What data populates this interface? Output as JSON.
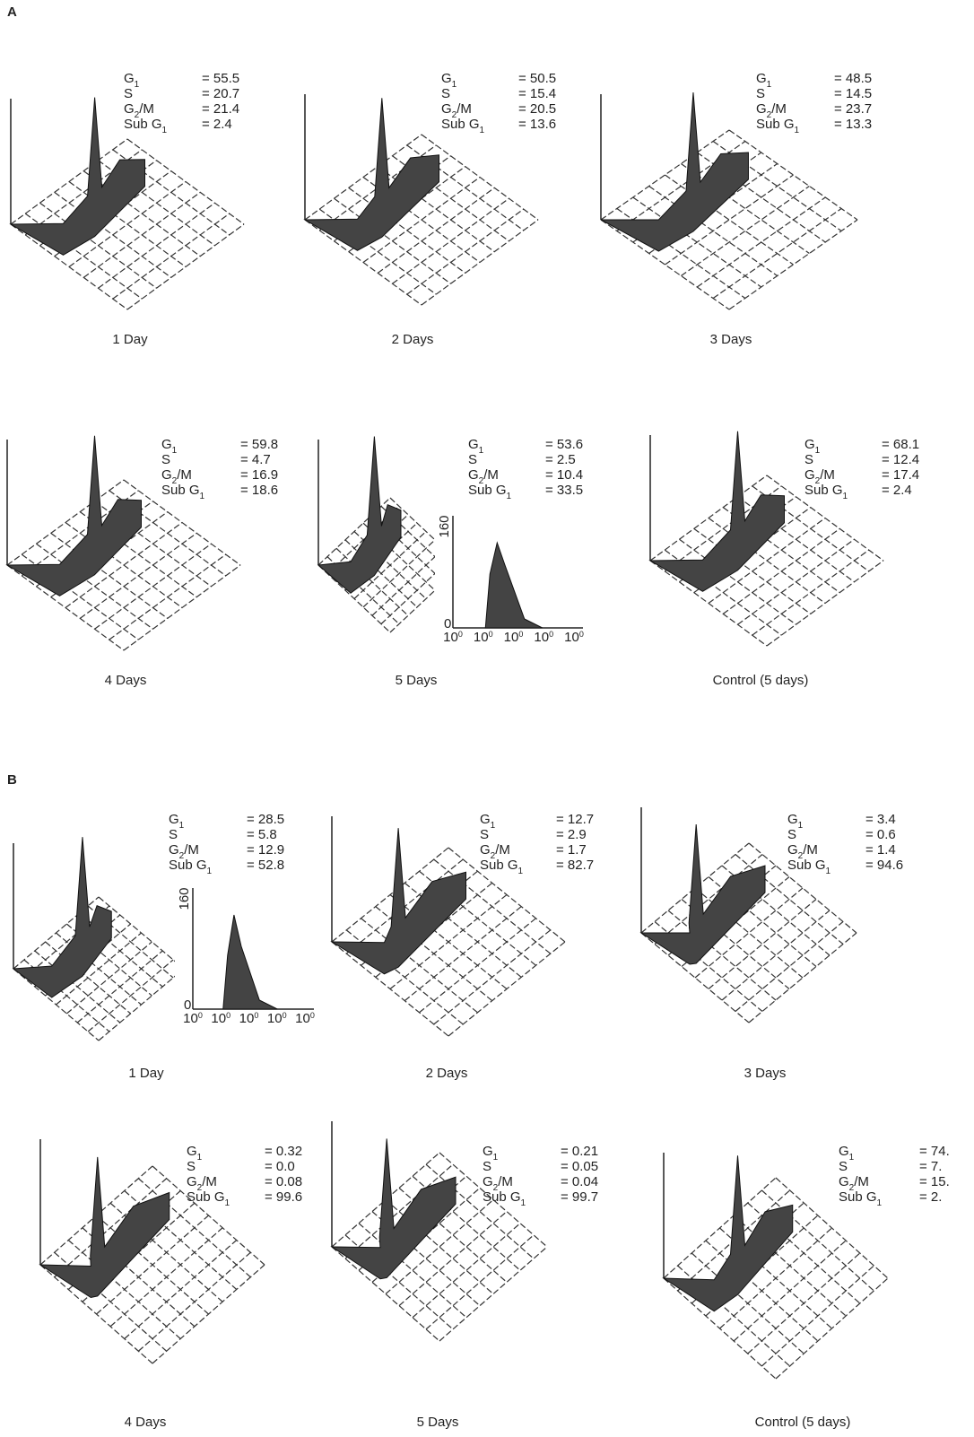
{
  "figure": {
    "sections": [
      {
        "label": "A",
        "panels": [
          {
            "caption": "1 Day",
            "stats": [
              {
                "label": [
                  "G",
                  "1"
                ],
                "value": "= 55.5"
              },
              {
                "label": [
                  "S"
                ],
                "value": "= 20.7"
              },
              {
                "label": [
                  "G",
                  "2",
                  "/M"
                ],
                "value": "= 21.4"
              },
              {
                "label": [
                  "Sub G",
                  "1"
                ],
                "value": "= 2.4"
              }
            ]
          },
          {
            "caption": "2 Days",
            "stats": [
              {
                "label": [
                  "G",
                  "1"
                ],
                "value": "= 50.5"
              },
              {
                "label": [
                  "S"
                ],
                "value": "= 15.4"
              },
              {
                "label": [
                  "G",
                  "2",
                  "/M"
                ],
                "value": "= 20.5"
              },
              {
                "label": [
                  "Sub G",
                  "1"
                ],
                "value": "= 13.6"
              }
            ]
          },
          {
            "caption": "3 Days",
            "stats": [
              {
                "label": [
                  "G",
                  "1"
                ],
                "value": "= 48.5"
              },
              {
                "label": [
                  "S"
                ],
                "value": "= 14.5"
              },
              {
                "label": [
                  "G",
                  "2",
                  "/M"
                ],
                "value": "= 23.7"
              },
              {
                "label": [
                  "Sub G",
                  "1"
                ],
                "value": "= 13.3"
              }
            ]
          },
          {
            "caption": "4 Days",
            "stats": [
              {
                "label": [
                  "G",
                  "1"
                ],
                "value": "= 59.8"
              },
              {
                "label": [
                  "S"
                ],
                "value": "= 4.7"
              },
              {
                "label": [
                  "G",
                  "2",
                  "/M"
                ],
                "value": "= 16.9"
              },
              {
                "label": [
                  "Sub G",
                  "1"
                ],
                "value": "= 18.6"
              }
            ]
          },
          {
            "caption": "5 Days",
            "stats": [
              {
                "label": [
                  "G",
                  "1"
                ],
                "value": "= 53.6"
              },
              {
                "label": [
                  "S"
                ],
                "value": "= 2.5"
              },
              {
                "label": [
                  "G",
                  "2",
                  "/M"
                ],
                "value": "= 10.4"
              },
              {
                "label": [
                  "Sub G",
                  "1"
                ],
                "value": "= 33.5"
              }
            ],
            "inset": {
              "y_labels": [
                "160",
                "0"
              ],
              "x_ticks": [
                [
                  "10",
                  "0"
                ],
                [
                  "10",
                  "0"
                ],
                [
                  "10",
                  "0"
                ],
                [
                  "10",
                  "0"
                ],
                [
                  "10",
                  "0"
                ]
              ]
            }
          },
          {
            "caption": "Control (5 days)",
            "stats": [
              {
                "label": [
                  "G",
                  "1"
                ],
                "value": "= 68.1"
              },
              {
                "label": [
                  "S"
                ],
                "value": "= 12.4"
              },
              {
                "label": [
                  "G",
                  "2",
                  "/M"
                ],
                "value": "= 17.4"
              },
              {
                "label": [
                  "Sub G",
                  "1"
                ],
                "value": "= 2.4"
              }
            ]
          }
        ]
      },
      {
        "label": "B",
        "panels": [
          {
            "caption": "1 Day",
            "stats": [
              {
                "label": [
                  "G",
                  "1"
                ],
                "value": "= 28.5"
              },
              {
                "label": [
                  "S"
                ],
                "value": "= 5.8"
              },
              {
                "label": [
                  "G",
                  "2",
                  "/M"
                ],
                "value": "= 12.9"
              },
              {
                "label": [
                  "Sub G",
                  "1"
                ],
                "value": "= 52.8"
              }
            ],
            "inset": {
              "y_labels": [
                "160",
                "0"
              ],
              "x_ticks": [
                [
                  "10",
                  "0"
                ],
                [
                  "10",
                  "0"
                ],
                [
                  "10",
                  "0"
                ],
                [
                  "10",
                  "0"
                ],
                [
                  "10",
                  "0"
                ]
              ]
            }
          },
          {
            "caption": "2 Days",
            "stats": [
              {
                "label": [
                  "G",
                  "1"
                ],
                "value": "= 12.7"
              },
              {
                "label": [
                  "S"
                ],
                "value": "= 2.9"
              },
              {
                "label": [
                  "G",
                  "2",
                  "/M"
                ],
                "value": "= 1.7"
              },
              {
                "label": [
                  "Sub G",
                  "1"
                ],
                "value": "= 82.7"
              }
            ]
          },
          {
            "caption": "3 Days",
            "stats": [
              {
                "label": [
                  "G",
                  "1"
                ],
                "value": "= 3.4"
              },
              {
                "label": [
                  "S"
                ],
                "value": "= 0.6"
              },
              {
                "label": [
                  "G",
                  "2",
                  "/M"
                ],
                "value": "= 1.4"
              },
              {
                "label": [
                  "Sub G",
                  "1"
                ],
                "value": "= 94.6"
              }
            ]
          },
          {
            "caption": "4 Days",
            "stats": [
              {
                "label": [
                  "G",
                  "1"
                ],
                "value": "= 0.32"
              },
              {
                "label": [
                  "S"
                ],
                "value": "= 0.0"
              },
              {
                "label": [
                  "G",
                  "2",
                  "/M"
                ],
                "value": "= 0.08"
              },
              {
                "label": [
                  "Sub G",
                  "1"
                ],
                "value": "= 99.6"
              }
            ]
          },
          {
            "caption": "5 Days",
            "stats": [
              {
                "label": [
                  "G",
                  "1"
                ],
                "value": "= 0.21"
              },
              {
                "label": [
                  "S"
                ],
                "value": "= 0.05"
              },
              {
                "label": [
                  "G",
                  "2",
                  "/M"
                ],
                "value": "= 0.04"
              },
              {
                "label": [
                  "Sub G",
                  "1"
                ],
                "value": "= 99.7"
              }
            ]
          },
          {
            "caption": "Control (5 days)",
            "stats": [
              {
                "label": [
                  "G",
                  "1"
                ],
                "value": "= 74."
              },
              {
                "label": [
                  "S"
                ],
                "value": "= 7."
              },
              {
                "label": [
                  "G",
                  "2",
                  "/M"
                ],
                "value": "= 15."
              },
              {
                "label": [
                  "Sub G",
                  "1"
                ],
                "value": "= 2."
              }
            ]
          }
        ]
      }
    ]
  }
}
